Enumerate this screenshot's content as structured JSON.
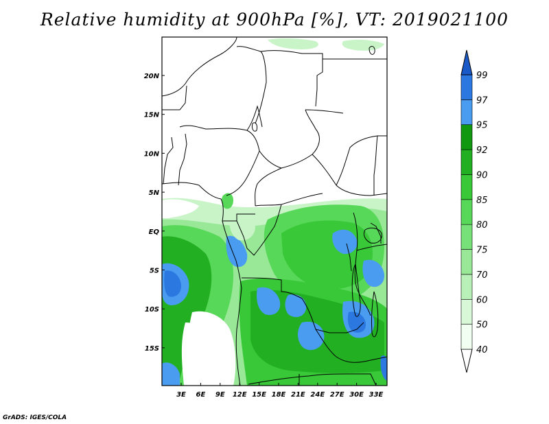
{
  "title": "Relative humidity at 900hPa [%], VT: 2019021100",
  "credit": "GrADS: IGES/COLA",
  "map": {
    "lat_labels": [
      "20N",
      "15N",
      "10N",
      "5N",
      "EQ",
      "5S",
      "10S",
      "15S"
    ],
    "lon_labels": [
      "3E",
      "6E",
      "9E",
      "12E",
      "15E",
      "18E",
      "21E",
      "24E",
      "27E",
      "30E",
      "33E"
    ]
  },
  "colorbar": {
    "levels": [
      "40",
      "50",
      "60",
      "70",
      "75",
      "80",
      "85",
      "90",
      "92",
      "95",
      "97",
      "99"
    ],
    "colors": [
      "#f0fff0",
      "#d8f8d8",
      "#b8f0b8",
      "#98e898",
      "#78e078",
      "#58d858",
      "#38c838",
      "#22b022",
      "#109810",
      "#4a9cf0",
      "#2a78e0",
      "#1a5ac8"
    ]
  }
}
